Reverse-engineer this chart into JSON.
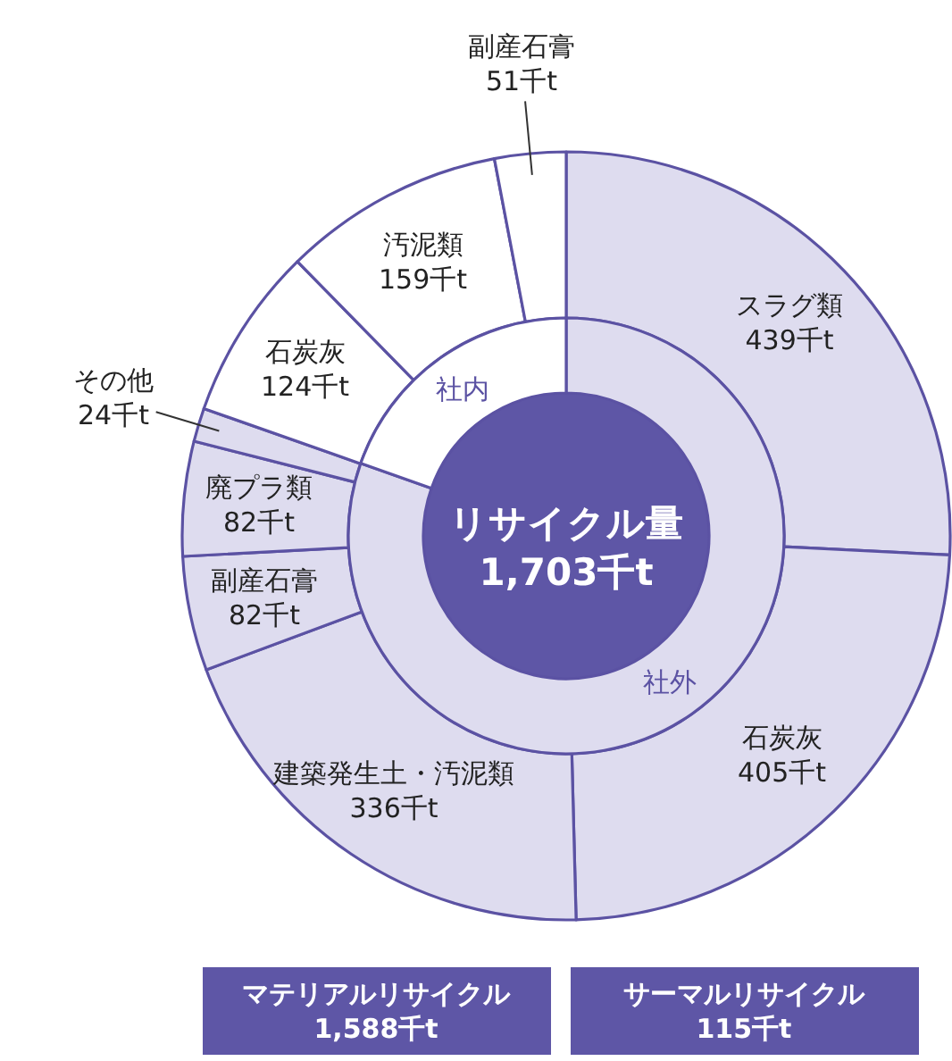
{
  "chart_data": [
    {
      "type": "donut",
      "categories": [
        "スラグ類",
        "石炭灰",
        "建築発生土・汚泥類",
        "副産石膏",
        "廃プラ類",
        "その他",
        "石炭灰",
        "汚泥類",
        "副産石膏"
      ],
      "values": [
        439,
        405,
        336,
        82,
        82,
        24,
        124,
        159,
        51
      ],
      "value_labels": [
        "439千t",
        "405千t",
        "336千t",
        "82千t",
        "82千t",
        "24千t",
        "124千t",
        "159千t",
        "51千t"
      ],
      "colors": [
        "#dedcef",
        "#dedcef",
        "#dedcef",
        "#dedcef",
        "#dedcef",
        "#dedcef",
        "#ffffff",
        "#ffffff",
        "#ffffff"
      ],
      "annotations": [
        "マテリアルリサイクル\n1,588千t",
        "サーマルリサイクル\n115千t"
      ]
    },
    {
      "type": "donut",
      "title": "リサイクル量",
      "subtitle": "1,703千t",
      "categories": [
        "社外",
        "社内"
      ],
      "values": [
        80.4,
        19.6
      ],
      "colors": [
        "#dedcef",
        "#ffffff"
      ]
    }
  ]
}
